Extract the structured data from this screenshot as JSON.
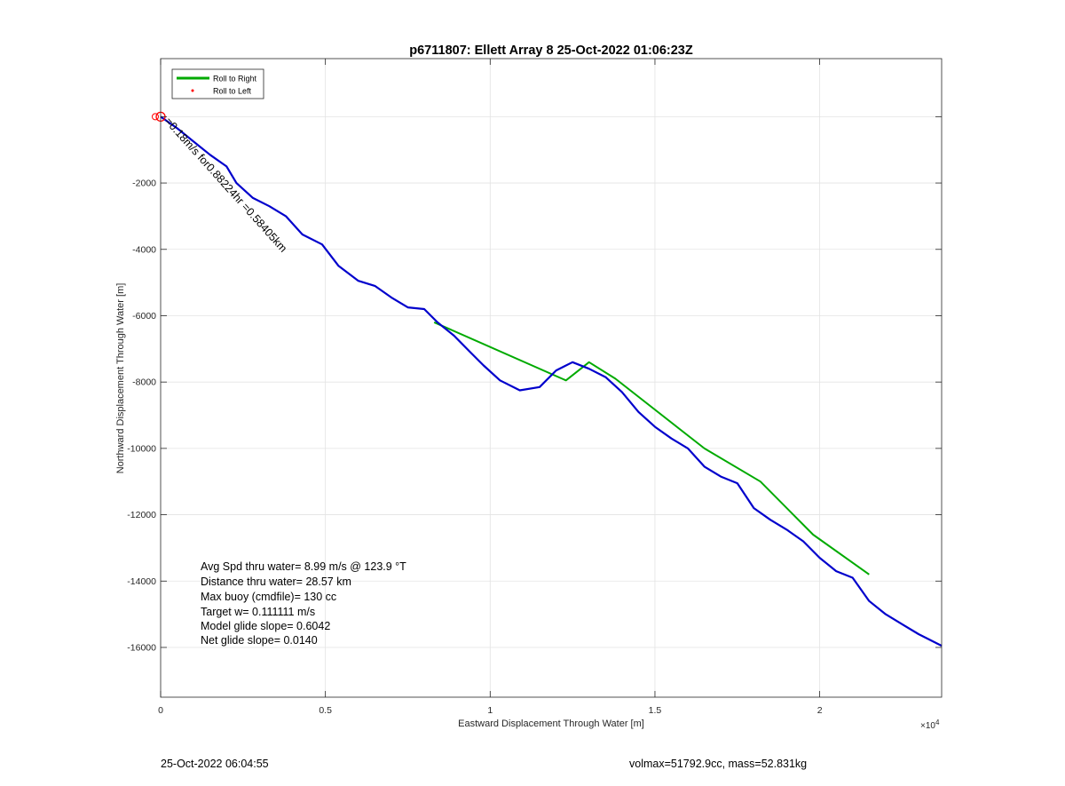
{
  "chart_data": {
    "type": "line",
    "title": "p6711807: Ellett Array 8 25-Oct-2022 01:06:23Z",
    "xlabel": "Eastward Displacement Through Water [m]",
    "ylabel": "Northward Displacement Through Water [m]",
    "x_exponent_label": "×10",
    "x_exponent_power": "4",
    "xlim": [
      0,
      23700
    ],
    "ylim": [
      -17500,
      1750
    ],
    "xticks": [
      0,
      5000,
      10000,
      15000,
      20000
    ],
    "xtick_labels": [
      "0",
      "0.5",
      "1",
      "1.5",
      "2"
    ],
    "yticks": [
      -16000,
      -14000,
      -12000,
      -10000,
      -8000,
      -6000,
      -4000,
      -2000
    ],
    "ytick_labels": [
      "-16000",
      "-14000",
      "-12000",
      "-10000",
      "-8000",
      "-6000",
      "-4000",
      "-2000"
    ],
    "grid": true,
    "legend_location": "top-left",
    "legend": [
      {
        "label": "Roll to Right",
        "color": "#00aa00",
        "marker": "line"
      },
      {
        "label": "Roll to Left",
        "color": "#ff0000",
        "marker": "dot"
      }
    ],
    "series": [
      {
        "name": "Roll to Right",
        "color": "#00aa00",
        "x": [
          8300,
          12300,
          13000,
          13800,
          16500,
          18200,
          19800,
          21500
        ],
        "y": [
          -6200,
          -7950,
          -7400,
          -7900,
          -10000,
          -11000,
          -12600,
          -13800
        ]
      },
      {
        "color": "#0000cc",
        "x": [
          0,
          500,
          1000,
          1500,
          2000,
          2300,
          2800,
          3300,
          3800,
          4300,
          4900,
          5400,
          6000,
          6500,
          7000,
          7500,
          8000,
          8400,
          8900,
          9400,
          9800,
          10300,
          10900,
          11500,
          12000,
          12500,
          13000,
          13500,
          14000,
          14500,
          15000,
          15500,
          16000,
          16500,
          17000,
          17500,
          18000,
          18500,
          19000,
          19500,
          20000,
          20500,
          21000,
          21500,
          22000,
          22500,
          23000,
          23700
        ],
        "y": [
          0,
          -350,
          -750,
          -1150,
          -1500,
          -2000,
          -2450,
          -2700,
          -3000,
          -3550,
          -3850,
          -4500,
          -4950,
          -5100,
          -5450,
          -5750,
          -5800,
          -6200,
          -6600,
          -7100,
          -7500,
          -7950,
          -8250,
          -8150,
          -7650,
          -7400,
          -7600,
          -7850,
          -8300,
          -8900,
          -9350,
          -9700,
          -10000,
          -10550,
          -10850,
          -11050,
          -11800,
          -12150,
          -12450,
          -12800,
          -13300,
          -13700,
          -13900,
          -14600,
          -15000,
          -15300,
          -15600,
          -15950
        ]
      }
    ],
    "start_marker": {
      "x": 0,
      "y": 0,
      "color": "#ff0000"
    },
    "track_label": "=0.18m/s for0.88224hr =0.58405km",
    "stats": [
      "Avg Spd thru water=  8.99 m/s @ 123.9 °T",
      "Distance thru water= 28.57 km",
      "Max buoy (cmdfile)= 130 cc",
      "Target w= 0.111111 m/s",
      "Model glide slope= 0.6042",
      "Net glide slope= 0.0140"
    ]
  },
  "footer": {
    "left": "25-Oct-2022 06:04:55",
    "right": "volmax=51792.9cc, mass=52.831kg"
  }
}
